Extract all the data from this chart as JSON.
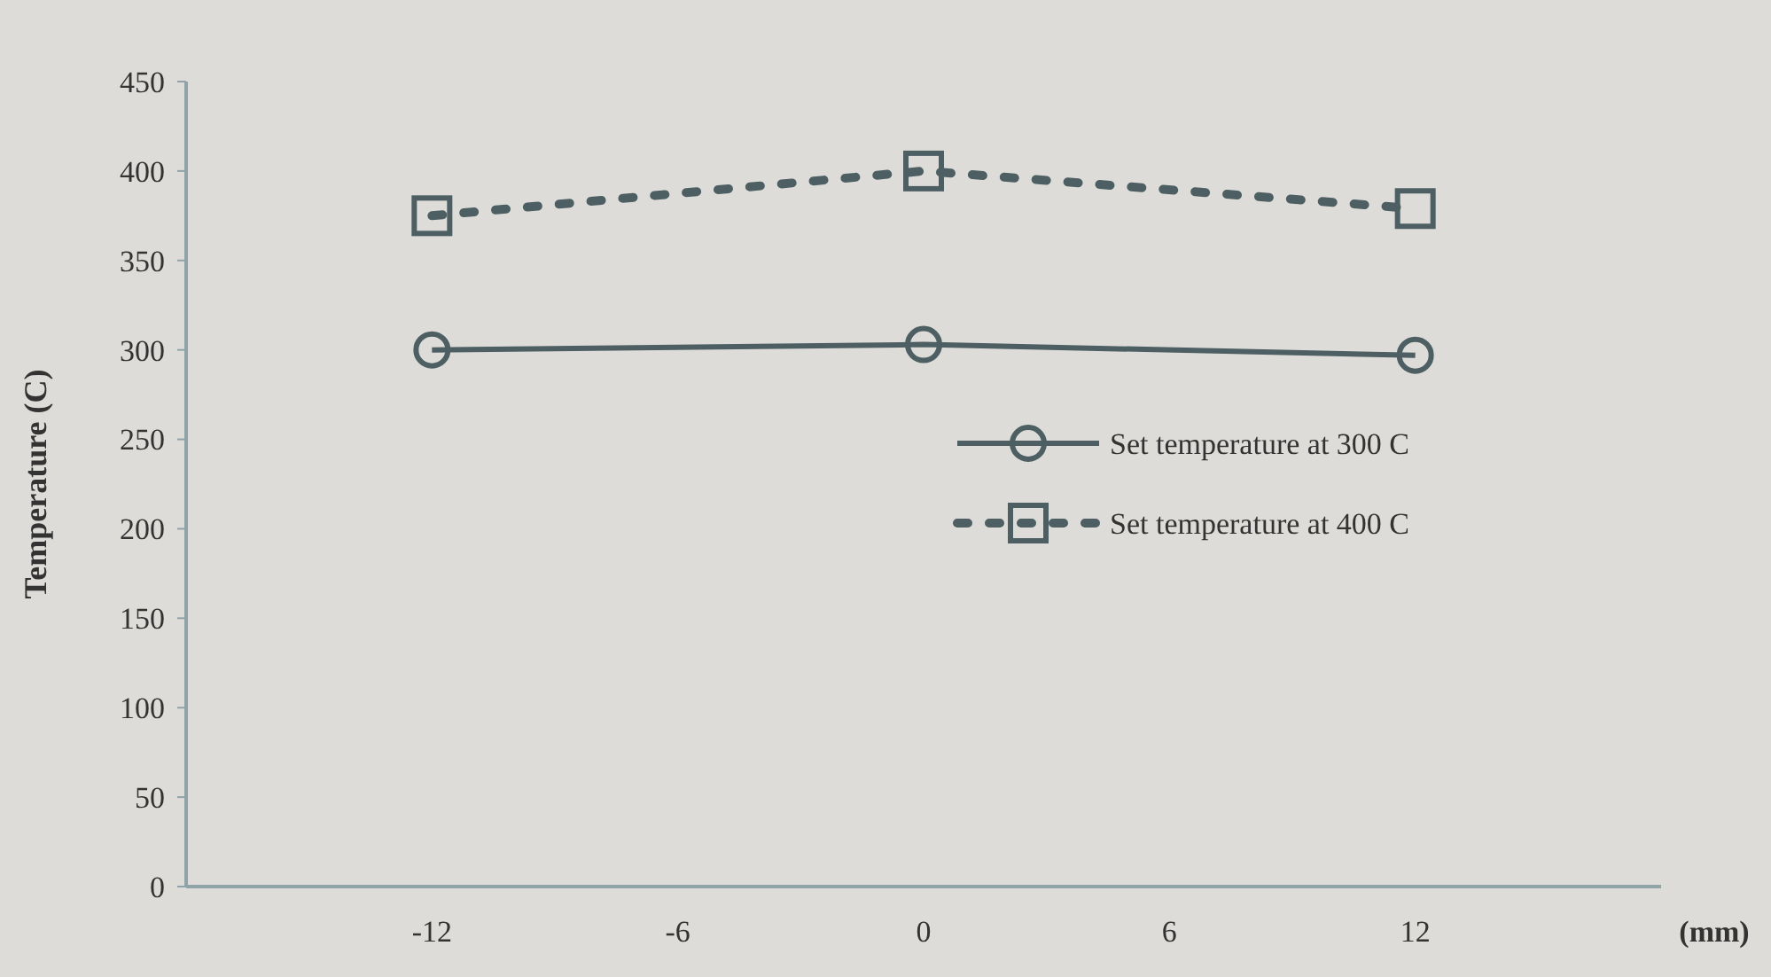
{
  "chart_data": {
    "type": "line",
    "xlabel": "(mm)",
    "ylabel": "Temperature (C)",
    "x": [
      -12,
      0,
      12
    ],
    "xlim": [
      -18,
      18
    ],
    "xticks": [
      -12,
      -6,
      0,
      6,
      12
    ],
    "ylim": [
      0,
      450
    ],
    "yticks": [
      0,
      50,
      100,
      150,
      200,
      250,
      300,
      350,
      400,
      450
    ],
    "grid": false,
    "legend": "right",
    "series": [
      {
        "name": "Set temperature at 300 C",
        "color": "#4d5f63",
        "values": [
          300,
          303,
          297
        ],
        "marker": "circle",
        "line_style": "solid"
      },
      {
        "name": "Set temperature at 400 C",
        "color": "#4d5f63",
        "values": [
          375,
          400,
          379
        ],
        "marker": "square",
        "line_style": "dotted"
      }
    ]
  }
}
